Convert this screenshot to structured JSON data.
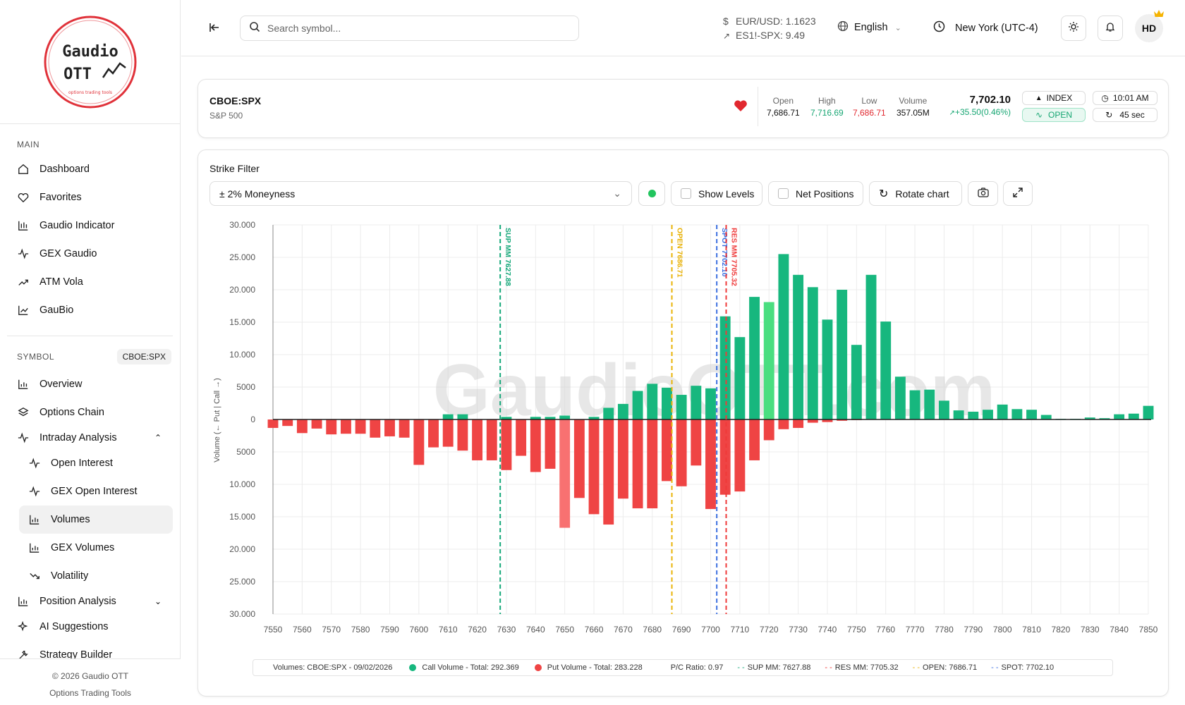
{
  "brand": {
    "logo_line1": "Gaudio",
    "logo_line2": "OTT",
    "logo_tagline": "options trading tools"
  },
  "sidebar": {
    "main_label": "MAIN",
    "main_items": [
      {
        "label": "Dashboard",
        "icon": "home-icon"
      },
      {
        "label": "Favorites",
        "icon": "heart-icon"
      },
      {
        "label": "Gaudio Indicator",
        "icon": "candlestick-icon"
      },
      {
        "label": "GEX Gaudio",
        "icon": "activity-icon"
      },
      {
        "label": "ATM Vola",
        "icon": "trend-icon"
      },
      {
        "label": "GauBio",
        "icon": "chart-icon"
      }
    ],
    "symbol_label": "SYMBOL",
    "symbol_badge": "CBOE:SPX",
    "symbol_items": [
      {
        "label": "Overview",
        "icon": "bar-chart-icon"
      },
      {
        "label": "Options Chain",
        "icon": "layers-icon"
      },
      {
        "label": "Intraday Analysis",
        "icon": "activity-icon"
      }
    ],
    "intraday_sub": [
      {
        "label": "Open Interest",
        "icon": "activity-icon"
      },
      {
        "label": "GEX Open Interest",
        "icon": "activity-icon"
      },
      {
        "label": "Volumes",
        "icon": "bar-chart-icon"
      },
      {
        "label": "GEX Volumes",
        "icon": "bar-chart-icon"
      },
      {
        "label": "Volatility",
        "icon": "trend-down-icon"
      }
    ],
    "more_items": [
      {
        "label": "Position Analysis",
        "icon": "bar-chart-icon"
      },
      {
        "label": "AI Suggestions",
        "icon": "sparkles-icon"
      },
      {
        "label": "Strategy Builder",
        "icon": "wrench-icon"
      }
    ],
    "footer_line1": "© 2026 Gaudio OTT",
    "footer_line2": "Options Trading Tools"
  },
  "topbar": {
    "search_placeholder": "Search symbol...",
    "fx_label": "EUR/USD: 1.1623",
    "spread_label": "ES1!-SPX: 9.49",
    "language": "English",
    "timezone": "New York (UTC-4)",
    "avatar": "HD"
  },
  "quote": {
    "symbol": "CBOE:SPX",
    "name": "S&P 500",
    "open_label": "Open",
    "open": "7,686.71",
    "high_label": "High",
    "high": "7,716.69",
    "low_label": "Low",
    "low": "7,686.71",
    "volume_label": "Volume",
    "volume": "357.05M",
    "price": "7,702.10",
    "change": "+35.50(0.46%)",
    "type_badge": "INDEX",
    "status_badge": "OPEN",
    "time": "10:01 AM",
    "refresh": "45 sec"
  },
  "filters": {
    "title": "Strike Filter",
    "moneyness": "± 2% Moneyness",
    "show_levels": "Show Levels",
    "net_positions": "Net Positions",
    "rotate": "Rotate chart"
  },
  "colors": {
    "call": "#17b77e",
    "put": "#ef4444",
    "sup": "#16a87a",
    "res": "#ef3a3a",
    "open": "#eab308",
    "spot": "#3b6fe0",
    "accent": "#17b77e"
  },
  "chart_data": {
    "type": "bar",
    "watermark": "GaudioOTT.com",
    "ylabel": "Volume (← Put | Call →)",
    "ylim": [
      -30000,
      30000
    ],
    "y_ticks": [
      "30.000",
      "25.000",
      "20.000",
      "15.000",
      "10.000",
      "5000",
      "0",
      "5000",
      "10.000",
      "15.000",
      "20.000",
      "25.000",
      "30.000"
    ],
    "x_ticks": [
      "7550",
      "7560",
      "7570",
      "7580",
      "7590",
      "7600",
      "7610",
      "7620",
      "7630",
      "7640",
      "7650",
      "7660",
      "7670",
      "7680",
      "7690",
      "7700",
      "7710",
      "7720",
      "7730",
      "7740",
      "7750",
      "7760",
      "7770",
      "7780",
      "7790",
      "7800",
      "7810",
      "7820",
      "7830",
      "7840",
      "7850"
    ],
    "strikes": [
      7550,
      7555,
      7560,
      7565,
      7570,
      7575,
      7580,
      7585,
      7590,
      7595,
      7600,
      7605,
      7610,
      7615,
      7620,
      7625,
      7630,
      7635,
      7640,
      7645,
      7650,
      7655,
      7660,
      7665,
      7670,
      7675,
      7680,
      7685,
      7690,
      7695,
      7700,
      7705,
      7710,
      7715,
      7720,
      7725,
      7730,
      7735,
      7740,
      7745,
      7750,
      7755,
      7760,
      7765,
      7770,
      7775,
      7780,
      7785,
      7790,
      7795,
      7800,
      7805,
      7810,
      7815,
      7820,
      7825,
      7830,
      7835,
      7840,
      7845,
      7850
    ],
    "series": [
      {
        "name": "Call Volume",
        "values": [
          0,
          0,
          0,
          0,
          0,
          0,
          0,
          0,
          0,
          0,
          0,
          0,
          800,
          800,
          0,
          0,
          400,
          0,
          400,
          400,
          600,
          0,
          400,
          1800,
          2400,
          4400,
          5500,
          4900,
          3800,
          5200,
          4800,
          15900,
          12700,
          18900,
          18100,
          25500,
          22300,
          20400,
          15400,
          20000,
          11500,
          22300,
          15100,
          6600,
          4500,
          4600,
          2900,
          1400,
          1200,
          1500,
          2300,
          1600,
          1500,
          700,
          100,
          100,
          300,
          200,
          800,
          900,
          2100
        ]
      },
      {
        "name": "Put Volume",
        "values": [
          -1300,
          -1000,
          -2100,
          -1400,
          -2300,
          -2200,
          -2200,
          -2800,
          -2600,
          -2800,
          -7000,
          -4300,
          -4200,
          -4800,
          -6300,
          -6300,
          -7800,
          -5600,
          -8100,
          -7600,
          -16700,
          -12100,
          -14600,
          -16200,
          -12200,
          -13700,
          -13700,
          -9500,
          -10300,
          -7100,
          -13800,
          -11600,
          -11100,
          -6300,
          -3200,
          -1500,
          -1300,
          -500,
          -400,
          -200,
          -100,
          0,
          0,
          0,
          0,
          0,
          0,
          0,
          0,
          0,
          0,
          0,
          0,
          0,
          0,
          0,
          0,
          0,
          0,
          0,
          0
        ]
      }
    ],
    "highlight_strikes": {
      "call": 7720,
      "put": 7650
    },
    "levels": [
      {
        "name": "SUP MM",
        "value": 7627.88,
        "label": "SUP MM 7627.88"
      },
      {
        "name": "OPEN",
        "value": 7686.71,
        "label": "OPEN 7686.71"
      },
      {
        "name": "SPOT",
        "value": 7702.1,
        "label": "SPOT 7702.10"
      },
      {
        "name": "RES MM",
        "value": 7705.32,
        "label": "RES MM 7705.32"
      }
    ],
    "legend": {
      "title": "Volumes: CBOE:SPX - 09/02/2026",
      "call": "Call Volume - Total: 292.369",
      "put": "Put Volume - Total: 283.228",
      "pc": "P/C Ratio: 0.97",
      "sup": "SUP MM: 7627.88",
      "res": "RES MM: 7705.32",
      "open": "OPEN: 7686.71",
      "spot": "SPOT: 7702.10"
    }
  }
}
